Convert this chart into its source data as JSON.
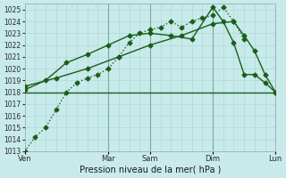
{
  "background_color": "#c8eaea",
  "grid_color": "#b0d8d8",
  "line_color": "#1a5e1a",
  "dark_vline_color": "#5a8a7a",
  "xlabel": "Pression niveau de la mer( hPa )",
  "ylim": [
    1013,
    1025.5
  ],
  "yticks": [
    1013,
    1014,
    1015,
    1016,
    1017,
    1018,
    1019,
    1020,
    1021,
    1022,
    1023,
    1024,
    1025
  ],
  "xlim": [
    0,
    24
  ],
  "day_labels": [
    "Ven",
    "Mar",
    "Sam",
    "Dim",
    "Lun"
  ],
  "day_positions": [
    0,
    8,
    12,
    18,
    24
  ],
  "vline_positions": [
    8,
    12,
    18,
    24
  ],
  "minor_x_step": 1,
  "series": [
    {
      "x": [
        0,
        1,
        2,
        3,
        4,
        5,
        6,
        7,
        8,
        9,
        10,
        11,
        12,
        13,
        14,
        15,
        16,
        17,
        18,
        19,
        20,
        21
      ],
      "y": [
        1013.0,
        1014.2,
        1015.0,
        1016.5,
        1018.0,
        1018.8,
        1019.2,
        1019.5,
        1020.0,
        1021.0,
        1022.2,
        1023.0,
        1023.3,
        1023.5,
        1024.0,
        1023.5,
        1024.0,
        1024.3,
        1024.5,
        1025.2,
        1024.0,
        1022.5
      ],
      "marker": "D",
      "markersize": 2.5,
      "linewidth": 1.0,
      "linestyle": "dotted"
    },
    {
      "x": [
        0,
        12,
        18,
        21,
        24
      ],
      "y": [
        1018.0,
        1018.0,
        1018.0,
        1018.0,
        1018.0
      ],
      "marker": null,
      "markersize": 0,
      "linewidth": 1.0,
      "linestyle": "solid"
    },
    {
      "x": [
        0,
        3,
        6,
        9,
        12,
        15,
        18,
        20,
        21,
        22,
        23,
        24
      ],
      "y": [
        1018.5,
        1019.2,
        1020.0,
        1021.0,
        1022.0,
        1022.8,
        1023.8,
        1024.0,
        1022.8,
        1021.5,
        1019.5,
        1018.0
      ],
      "marker": "D",
      "markersize": 2.5,
      "linewidth": 1.0,
      "linestyle": "solid"
    },
    {
      "x": [
        0,
        2,
        4,
        6,
        8,
        10,
        12,
        14,
        16,
        18,
        19,
        20,
        21,
        22,
        23,
        24
      ],
      "y": [
        1018.2,
        1019.0,
        1020.5,
        1021.2,
        1022.0,
        1022.8,
        1023.0,
        1022.8,
        1022.5,
        1025.2,
        1024.0,
        1022.2,
        1019.5,
        1019.5,
        1018.8,
        1018.0
      ],
      "marker": "D",
      "markersize": 2.5,
      "linewidth": 1.0,
      "linestyle": "solid"
    }
  ]
}
